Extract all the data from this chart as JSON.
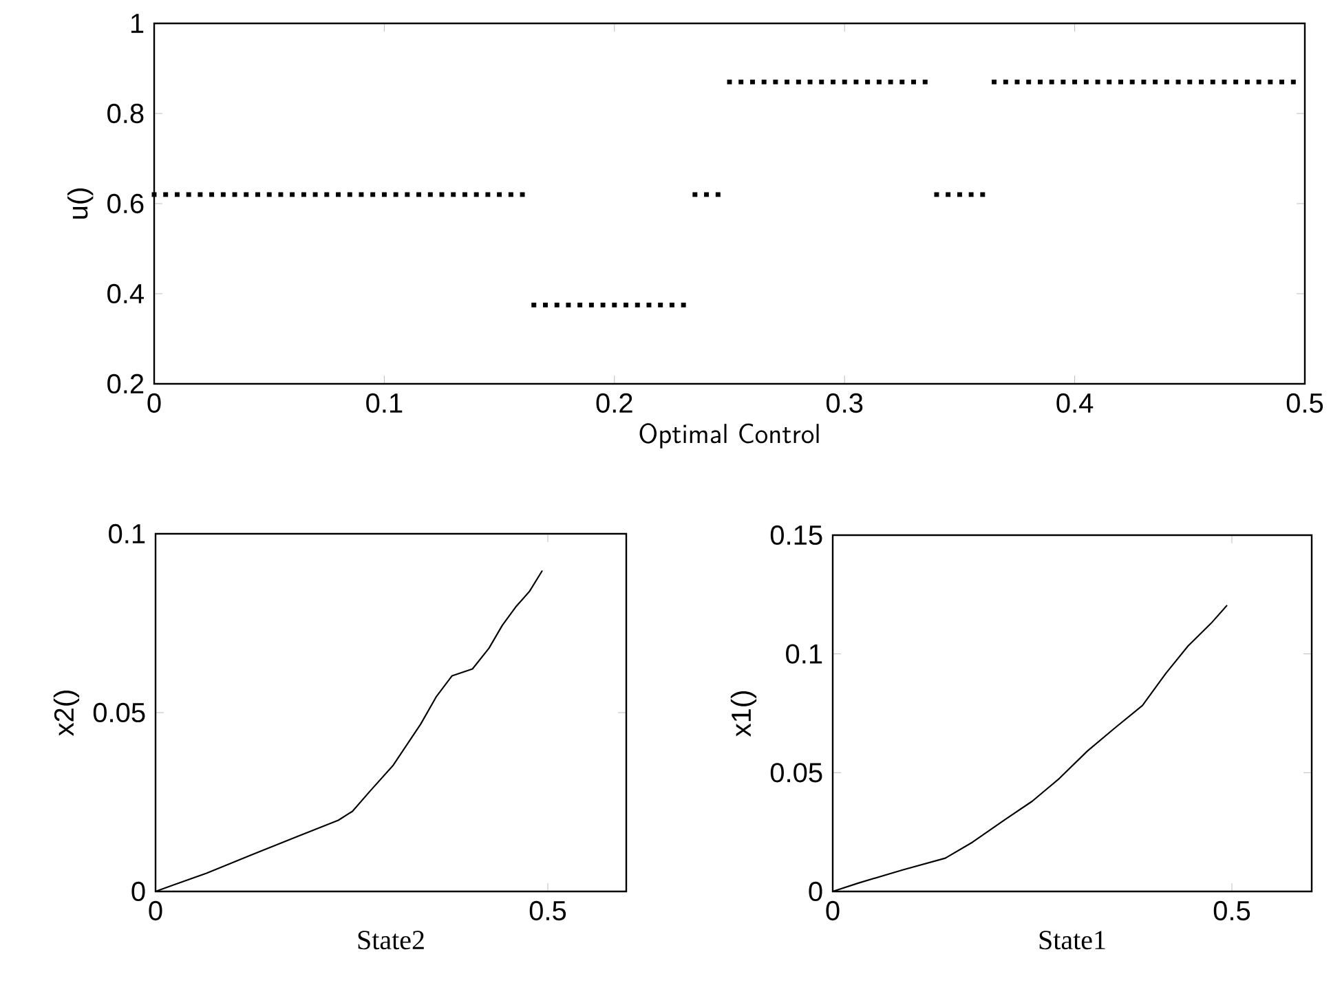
{
  "chart_data": [
    {
      "type": "scatter",
      "xlabel": "Optimal Control",
      "ylabel": "u()",
      "marker": "square",
      "color": "#000000",
      "xlim": [
        0,
        0.5
      ],
      "ylim": [
        0.2,
        1
      ],
      "xticks": [
        0,
        0.1,
        0.2,
        0.3,
        0.4,
        0.5
      ],
      "yticks": [
        0.2,
        0.4,
        0.6,
        0.8,
        1
      ],
      "x": [
        0,
        0.005,
        0.01,
        0.015,
        0.02,
        0.025,
        0.03,
        0.035,
        0.04,
        0.045,
        0.05,
        0.055,
        0.06,
        0.065,
        0.07,
        0.075,
        0.08,
        0.085,
        0.09,
        0.095,
        0.1,
        0.105,
        0.11,
        0.115,
        0.12,
        0.125,
        0.13,
        0.135,
        0.14,
        0.145,
        0.15,
        0.155,
        0.16,
        0.165,
        0.17,
        0.175,
        0.18,
        0.185,
        0.19,
        0.195,
        0.2,
        0.205,
        0.21,
        0.215,
        0.22,
        0.225,
        0.23,
        0.235,
        0.24,
        0.245,
        0.25,
        0.255,
        0.26,
        0.265,
        0.27,
        0.275,
        0.28,
        0.285,
        0.29,
        0.295,
        0.3,
        0.305,
        0.31,
        0.315,
        0.32,
        0.325,
        0.33,
        0.335,
        0.34,
        0.345,
        0.35,
        0.355,
        0.36,
        0.365,
        0.37,
        0.375,
        0.38,
        0.385,
        0.39,
        0.395,
        0.4,
        0.405,
        0.41,
        0.415,
        0.42,
        0.425,
        0.43,
        0.435,
        0.44,
        0.445,
        0.45,
        0.455,
        0.46,
        0.465,
        0.47,
        0.475,
        0.48,
        0.485,
        0.49,
        0.495
      ],
      "values": [
        0.62,
        0.62,
        0.62,
        0.62,
        0.62,
        0.62,
        0.62,
        0.62,
        0.62,
        0.62,
        0.62,
        0.62,
        0.62,
        0.62,
        0.62,
        0.62,
        0.62,
        0.62,
        0.62,
        0.62,
        0.62,
        0.62,
        0.62,
        0.62,
        0.62,
        0.62,
        0.62,
        0.62,
        0.62,
        0.62,
        0.62,
        0.62,
        0.62,
        0.375,
        0.375,
        0.375,
        0.375,
        0.375,
        0.375,
        0.375,
        0.375,
        0.375,
        0.375,
        0.375,
        0.375,
        0.375,
        0.375,
        0.62,
        0.62,
        0.62,
        0.87,
        0.87,
        0.87,
        0.87,
        0.87,
        0.87,
        0.87,
        0.87,
        0.87,
        0.87,
        0.87,
        0.87,
        0.87,
        0.87,
        0.87,
        0.87,
        0.87,
        0.87,
        0.62,
        0.62,
        0.62,
        0.62,
        0.62,
        0.87,
        0.87,
        0.87,
        0.87,
        0.87,
        0.87,
        0.87,
        0.87,
        0.87,
        0.87,
        0.87,
        0.87,
        0.87,
        0.87,
        0.87,
        0.87,
        0.87,
        0.87,
        0.87,
        0.87,
        0.87,
        0.87,
        0.87,
        0.87,
        0.87,
        0.87,
        0.87
      ]
    },
    {
      "type": "line",
      "xlabel": "State2",
      "ylabel": "x2()",
      "color": "#000000",
      "xlim": [
        0,
        0.6
      ],
      "ylim": [
        0,
        0.1
      ],
      "xticks": [
        0,
        0.5
      ],
      "yticks": [
        0,
        0.05,
        0.1
      ],
      "x": [
        0,
        0.065,
        0.123,
        0.181,
        0.233,
        0.251,
        0.274,
        0.303,
        0.338,
        0.358,
        0.378,
        0.404,
        0.425,
        0.442,
        0.459,
        0.477,
        0.493
      ],
      "values": [
        0,
        0.0051,
        0.0103,
        0.0154,
        0.0199,
        0.0224,
        0.0282,
        0.0353,
        0.0468,
        0.0545,
        0.0603,
        0.0622,
        0.068,
        0.0744,
        0.0795,
        0.084,
        0.0897
      ]
    },
    {
      "type": "line",
      "xlabel": "State1",
      "ylabel": "x1()",
      "color": "#000000",
      "xlim": [
        0,
        0.6
      ],
      "ylim": [
        0,
        0.15
      ],
      "xticks": [
        0,
        0.5
      ],
      "yticks": [
        0,
        0.05,
        0.1,
        0.15
      ],
      "x": [
        0,
        0.032,
        0.089,
        0.141,
        0.175,
        0.216,
        0.25,
        0.284,
        0.319,
        0.353,
        0.388,
        0.417,
        0.445,
        0.474,
        0.494
      ],
      "values": [
        0,
        0.0035,
        0.0092,
        0.014,
        0.0207,
        0.0303,
        0.038,
        0.0476,
        0.0591,
        0.0687,
        0.0783,
        0.0917,
        0.1033,
        0.1129,
        0.1205
      ]
    }
  ]
}
